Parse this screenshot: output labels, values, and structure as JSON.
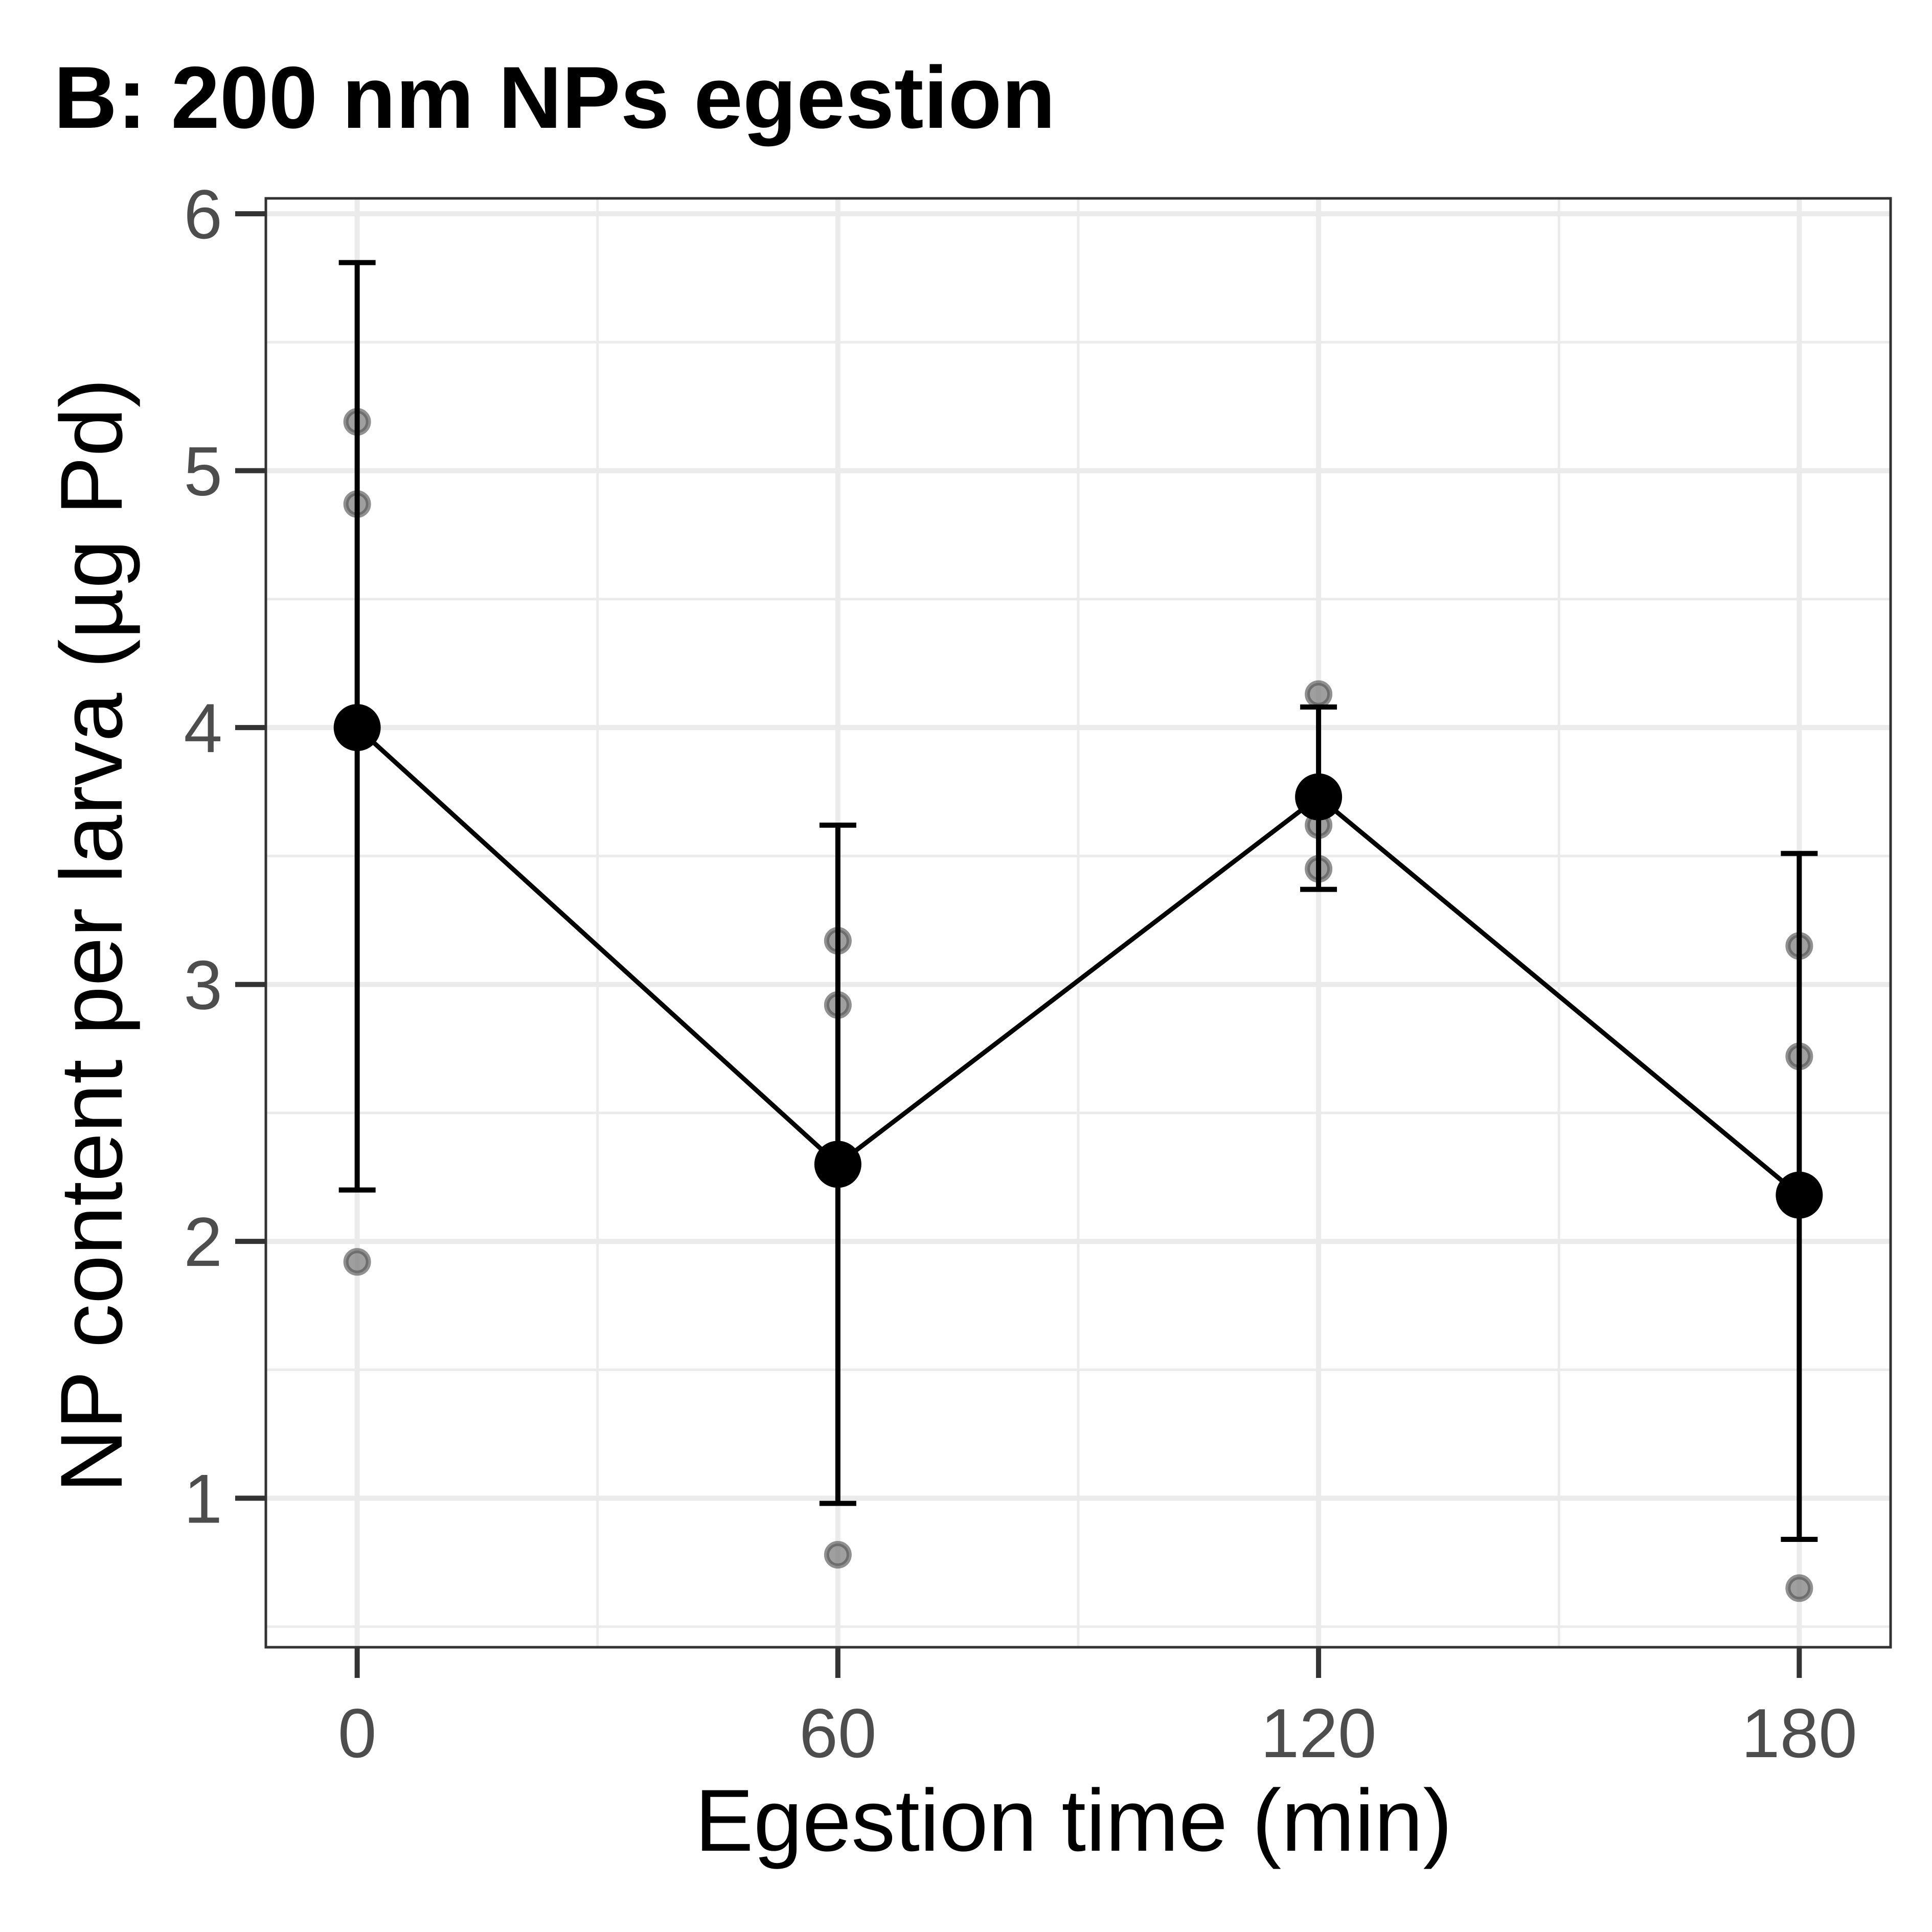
{
  "chart_data": {
    "type": "line",
    "title": "B: 200 nm NPs egestion",
    "xlabel": "Egestion time (min)",
    "ylabel": "NP content per larva (µg Pd)",
    "x": [
      0,
      60,
      120,
      180
    ],
    "x_ticks": [
      "0",
      "60",
      "120",
      "180"
    ],
    "y_ticks": [
      "1",
      "2",
      "3",
      "4",
      "5",
      "6"
    ],
    "xlim": [
      -11.4,
      191.4
    ],
    "ylim": [
      0.42,
      6.06
    ],
    "grid": true,
    "legend": "none",
    "series": [
      {
        "mean": [
          4.0,
          2.3,
          3.73,
          2.18
        ],
        "error_low": [
          2.2,
          0.98,
          3.37,
          0.84
        ],
        "error_high": [
          5.81,
          3.62,
          4.08,
          3.51
        ],
        "color": "#000000"
      }
    ],
    "replicates": [
      {
        "x": 0,
        "y": [
          5.19,
          4.87,
          1.92
        ]
      },
      {
        "x": 60,
        "y": [
          3.17,
          2.92,
          0.78
        ]
      },
      {
        "x": 120,
        "y": [
          4.13,
          3.62,
          3.45
        ]
      },
      {
        "x": 180,
        "y": [
          3.15,
          2.72,
          0.65
        ]
      }
    ],
    "colors": {
      "mean": "#000000",
      "replicate_fill": "#7f7f7f",
      "replicate_stroke": "#555555",
      "grid": "#ebebeb",
      "panel_border": "#333333",
      "tick_label": "#4d4d4d"
    }
  }
}
